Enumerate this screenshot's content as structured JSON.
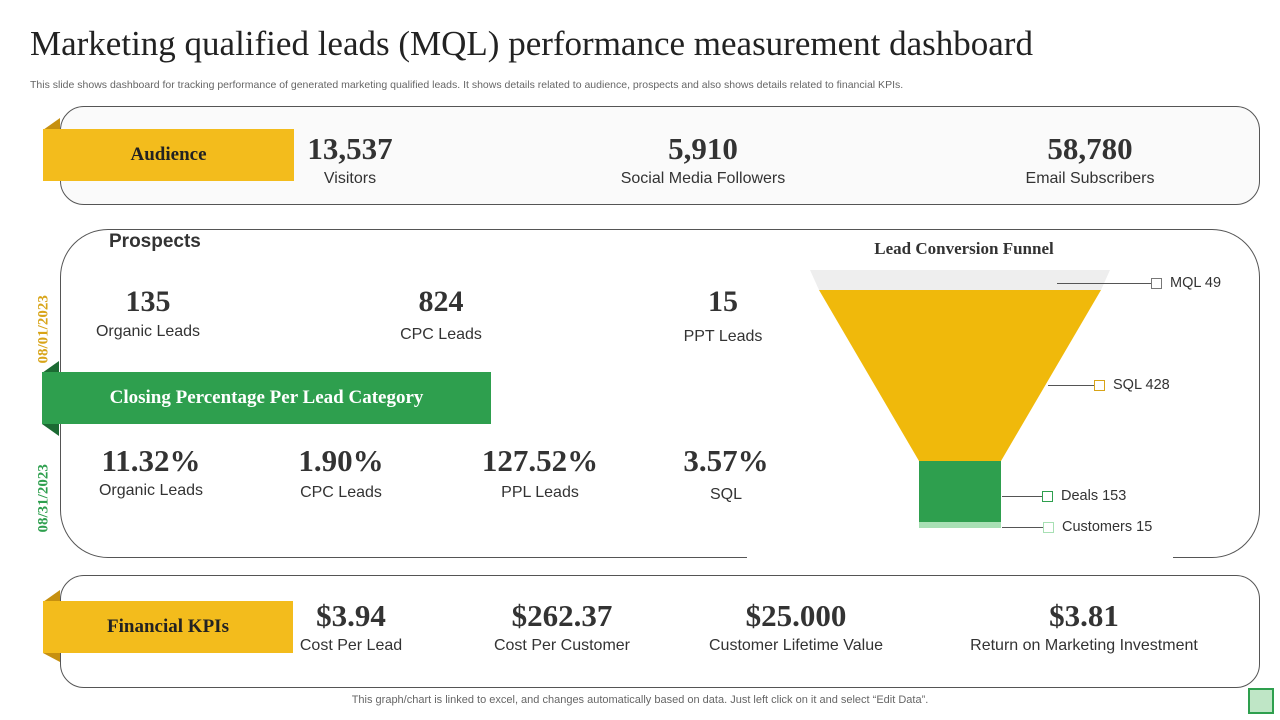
{
  "header": {
    "title": "Marketing qualified leads (MQL) performance measurement dashboard",
    "subtitle": "This slide shows dashboard for tracking performance of generated marketing qualified leads. It shows details related to audience, prospects and also shows details related to financial KPIs."
  },
  "audience": {
    "label": "Audience",
    "stats": [
      {
        "value": "13,537",
        "label": "Visitors"
      },
      {
        "value": "5,910",
        "label": "Social Media Followers"
      },
      {
        "value": "58,780",
        "label": "Email Subscribers"
      }
    ]
  },
  "prospects": {
    "title": "Prospects",
    "date_start": "08/01/2023",
    "date_end": "08/31/2023",
    "leads": [
      {
        "value": "135",
        "label": "Organic Leads"
      },
      {
        "value": "824",
        "label": "CPC Leads"
      },
      {
        "value": "15",
        "label": "PPT Leads"
      }
    ],
    "closing_label": "Closing  Percentage Per Lead Category",
    "closing": [
      {
        "value": "11.32%",
        "label": "Organic Leads"
      },
      {
        "value": "1.90%",
        "label": "CPC Leads"
      },
      {
        "value": "127.52%",
        "label": "PPL Leads"
      },
      {
        "value": "3.57%",
        "label": "SQL"
      }
    ]
  },
  "chart_data": {
    "type": "funnel",
    "title": "Lead Conversion Funnel",
    "categories": [
      "MQL",
      "SQL",
      "Deals",
      "Customers"
    ],
    "values": [
      49,
      428,
      153,
      15
    ],
    "legend": [
      "MQL 49",
      "SQL 428",
      "Deals 153",
      "Customers 15"
    ],
    "colors": [
      "#eeeeee",
      "#f0b90b",
      "#2e9f4e",
      "#a8e0b4"
    ]
  },
  "financial": {
    "label": "Financial KPIs",
    "stats": [
      {
        "value": "$3.94",
        "label": "Cost Per Lead"
      },
      {
        "value": "$262.37",
        "label": "Cost Per Customer"
      },
      {
        "value": "$25.000",
        "label": "Customer  Lifetime Value"
      },
      {
        "value": "$3.81",
        "label": "Return  on Marketing Investment"
      }
    ]
  },
  "footer": {
    "note": "This graph/chart is linked to excel,  and changes automatically based on data. Just left click on it and select “Edit Data”."
  },
  "colors": {
    "accent_yellow": "#f3bc1c",
    "accent_green": "#2e9f4e"
  }
}
